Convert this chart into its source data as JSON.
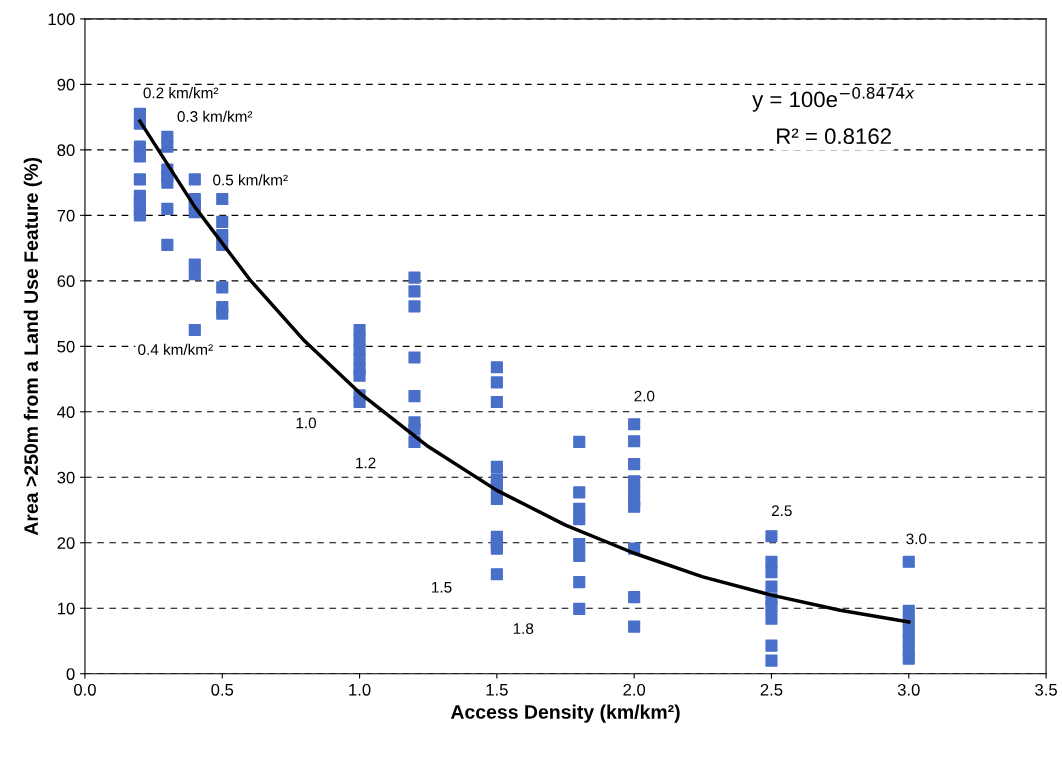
{
  "chart_data": {
    "type": "scatter",
    "xlabel": "Access Density (km/km²)",
    "ylabel": "Area >250m from a Land Use Feature (%)",
    "xlim": [
      0,
      3.5
    ],
    "xticks": [
      {
        "value": 0,
        "label": "0.0"
      },
      {
        "value": 0.5,
        "label": "0.5"
      },
      {
        "value": 1,
        "label": "1.0"
      },
      {
        "value": 1.5,
        "label": "1.5"
      },
      {
        "value": 2,
        "label": "2.0"
      },
      {
        "value": 2.5,
        "label": "2.5"
      },
      {
        "value": 3,
        "label": "3.0"
      },
      {
        "value": 3.5,
        "label": "3.5"
      }
    ],
    "ylim": [
      0,
      100
    ],
    "yticks": [
      0,
      10,
      20,
      30,
      40,
      50,
      60,
      70,
      80,
      90,
      100
    ],
    "grid": "y",
    "marker": "square",
    "legend": false,
    "series": [
      {
        "color": "#4a6fc9",
        "x": [
          0.2,
          0.2,
          0.2,
          0.2,
          0.2,
          0.2,
          0.2,
          0.2,
          0.2,
          0.3,
          0.3,
          0.3,
          0.3,
          0.3,
          0.3,
          0.3,
          0.4,
          0.4,
          0.4,
          0.4,
          0.4,
          0.4,
          0.4,
          0.5,
          0.5,
          0.5,
          0.5,
          0.5,
          0.5,
          0.5,
          1.0,
          1.0,
          1.0,
          1.0,
          1.0,
          1.0,
          1.0,
          1.0,
          1.2,
          1.2,
          1.2,
          1.2,
          1.2,
          1.2,
          1.2,
          1.2,
          1.5,
          1.5,
          1.5,
          1.5,
          1.5,
          1.5,
          1.5,
          1.5,
          1.5,
          1.5,
          1.5,
          1.8,
          1.8,
          1.8,
          1.8,
          1.8,
          1.8,
          1.8,
          1.8,
          2.0,
          2.0,
          2.0,
          2.0,
          2.0,
          2.0,
          2.0,
          2.0,
          2.0,
          2.0,
          2.5,
          2.5,
          2.5,
          2.5,
          2.5,
          2.5,
          2.5,
          2.5,
          2.5,
          3.0,
          3.0,
          3.0,
          3.0,
          3.0,
          3.0,
          3.0
        ],
        "values": [
          85.5,
          84,
          80.5,
          79,
          75.5,
          73,
          72,
          71,
          70,
          82,
          80.5,
          77,
          76,
          75,
          71,
          65.5,
          75.5,
          72.5,
          71.5,
          70.5,
          62.5,
          61,
          52.5,
          72.5,
          69,
          67,
          65.5,
          59,
          56,
          55,
          52.5,
          51,
          49.5,
          48,
          46.5,
          45.5,
          42.5,
          41.5,
          60.5,
          58.4,
          56.1,
          48.3,
          42.4,
          38.4,
          37.3,
          35.4,
          46.8,
          44.5,
          41.5,
          31.6,
          29.7,
          28.5,
          26.7,
          20.9,
          19.1,
          15.2,
          19.8,
          35.4,
          27.7,
          25.2,
          23.6,
          19.8,
          18,
          14,
          9.9,
          38.1,
          35.5,
          32,
          29.4,
          27.9,
          26.4,
          25.5,
          19.1,
          11.7,
          7.2,
          21,
          17.1,
          15.5,
          13.3,
          11.4,
          10.2,
          8.4,
          4.3,
          2,
          17.1,
          9.6,
          8,
          6.5,
          5,
          3.5,
          2.3
        ]
      },
      {
        "type": "line",
        "color": "#000000",
        "marker": "none",
        "line_style": "solid",
        "x": [
          0.2,
          0.4,
          0.6,
          0.8,
          1.0,
          1.25,
          1.5,
          1.75,
          2.0,
          2.25,
          2.5,
          2.75,
          3.0
        ],
        "values": [
          84.4,
          71.3,
          60.2,
          50.8,
          42.9,
          34.7,
          28.0,
          22.7,
          18.4,
          14.8,
          12.0,
          9.7,
          7.9
        ]
      }
    ],
    "annotations": [
      "y = 100e$^{−0.8474x}$",
      "R² = 0.8162",
      "0.2 km/km²",
      "0.3 km/km²",
      "0.5 km/km²",
      "0.4 km/km²",
      "1.0",
      "1.2",
      "1.5",
      "1.8",
      "2.0",
      "2.5",
      "3.0"
    ]
  }
}
